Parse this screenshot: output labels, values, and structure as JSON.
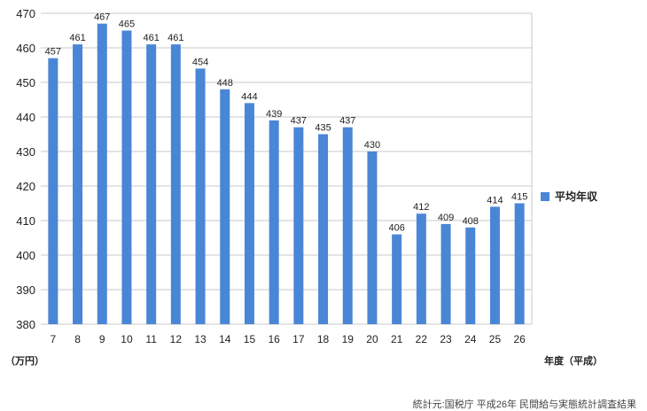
{
  "chart_data": {
    "type": "bar",
    "categories": [
      "7",
      "8",
      "9",
      "10",
      "11",
      "12",
      "13",
      "14",
      "15",
      "16",
      "17",
      "18",
      "19",
      "20",
      "21",
      "22",
      "23",
      "24",
      "25",
      "26"
    ],
    "series": [
      {
        "name": "平均年収",
        "values": [
          457,
          461,
          467,
          465,
          461,
          461,
          454,
          448,
          444,
          439,
          437,
          435,
          437,
          430,
          406,
          412,
          409,
          408,
          414,
          415
        ]
      }
    ],
    "ylim": [
      380,
      470
    ],
    "yticks": [
      380,
      390,
      400,
      410,
      420,
      430,
      440,
      450,
      460,
      470
    ],
    "grid": true,
    "legend_position": "right",
    "y_unit_label": "（万円）",
    "xlabel": "年度（平成）",
    "bar_color": "#4a86d6",
    "source": "統計元:国税庁 平成26年 民間給与実態統計調査結果"
  }
}
